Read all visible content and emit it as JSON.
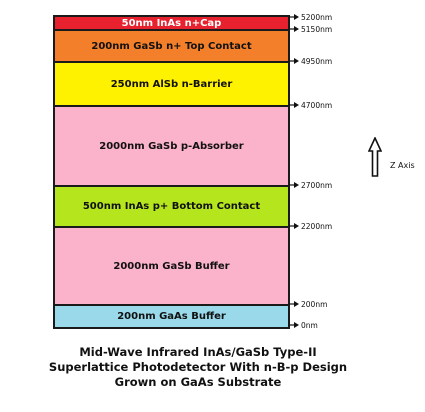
{
  "layers": [
    {
      "label": "50nm InAs n+Cap",
      "color": "#e8212e",
      "text_color": "#ffffff"
    },
    {
      "label": "200nm GaSb n+ Top Contact",
      "color": "#f47f2a",
      "text_color": "#111111"
    },
    {
      "label": "250nm AlSb n-Barrier",
      "color": "#fff200",
      "text_color": "#111111"
    },
    {
      "label": "2000nm GaSb p-Absorber",
      "color": "#fbb3cb",
      "text_color": "#111111"
    },
    {
      "label": "500nm InAs p+ Bottom Contact",
      "color": "#b5e61d",
      "text_color": "#111111"
    },
    {
      "label": "2000nm GaSb Buffer",
      "color": "#fbb3cb",
      "text_color": "#111111"
    },
    {
      "label": "200nm GaAs Buffer",
      "color": "#99d9ea",
      "text_color": "#111111"
    }
  ],
  "depth_markers": [
    "5200nm",
    "5150nm",
    "4950nm",
    "4700nm",
    "2700nm",
    "2200nm",
    "200nm",
    "0nm"
  ],
  "axis_label": "Z Axis",
  "caption": [
    "Mid-Wave Infrared InAs/GaSb Type-II",
    "Superlattice Photodetector With n-B-p Design",
    "Grown on GaAs Substrate"
  ]
}
